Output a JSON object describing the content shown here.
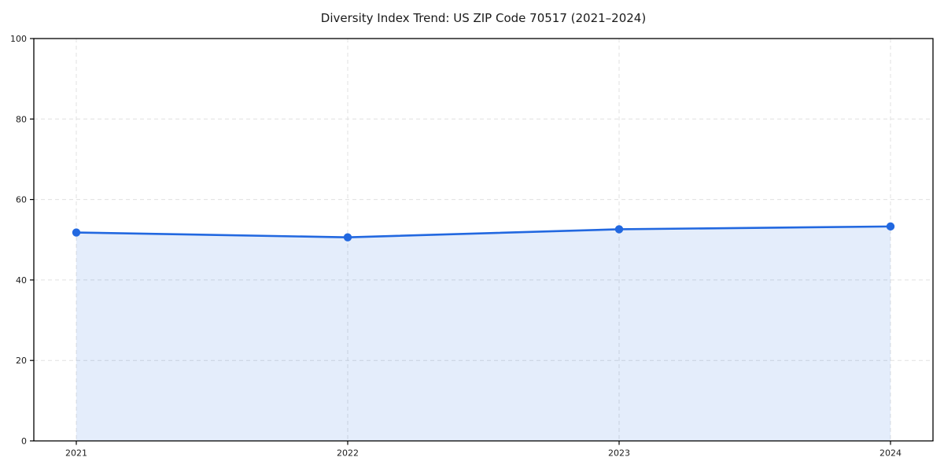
{
  "chart_data": {
    "type": "line",
    "title": "Diversity Index Trend: US ZIP Code 70517 (2021–2024)",
    "categories": [
      "2021",
      "2022",
      "2023",
      "2024"
    ],
    "series": [
      {
        "name": "Diversity Index",
        "values": [
          51.8,
          50.6,
          52.6,
          53.3
        ]
      }
    ],
    "xlabel": "",
    "ylabel": "",
    "ylim": [
      0,
      100
    ],
    "yticks": [
      0,
      20,
      40,
      60,
      80,
      100
    ],
    "grid": true,
    "grid_style": "dashed",
    "legend": "none",
    "colors": {
      "line": "#2268e0",
      "marker": "#2268e0",
      "fill": "rgba(34, 104, 224, 0.12)",
      "grid": "#e0e0e0",
      "spine": "#000000",
      "text": "#1a1a1a"
    }
  }
}
